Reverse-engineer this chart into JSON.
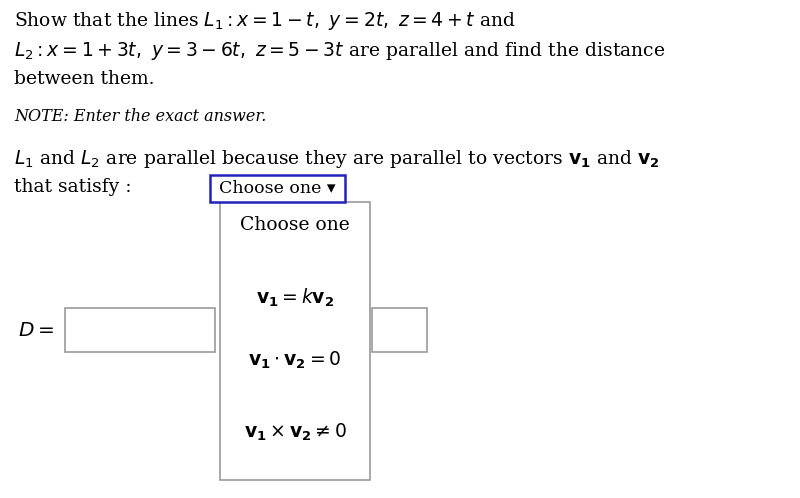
{
  "bg_color": "#ffffff",
  "fig_width": 8.0,
  "fig_height": 4.98,
  "dpi": 100,
  "line1": "Show that the lines $L_1 : x = 1-t,\\ y = 2t,\\ z = 4+t$ and",
  "line2": "$L_2 : x = 1+3t,\\ y = 3-6t,\\ z = 5-3t$ are parallel and find the distance",
  "line3": "between them.",
  "note": "NOTE: Enter the exact answer.",
  "parallel_line1": "$L_1$ and $L_2$ are parallel because they are parallel to vectors $\\mathbf{v_1}$ and $\\mathbf{v_2}$",
  "parallel_line2_left": "that satisfy :",
  "dropdown_label": "Choose one ▾",
  "menu_item0": "Choose one",
  "menu_item1": "$\\mathbf{v_1} = k\\mathbf{v_2}$",
  "menu_item2": "$\\mathbf{v_1}\\cdot\\mathbf{v_2}=0$",
  "menu_item3": "$\\mathbf{v_1}\\times\\mathbf{v_2} \\neq 0$",
  "D_label": "$D =$",
  "text_color": "#000000",
  "dropdown_border_color": "#2222bb",
  "box_border_color": "#999999",
  "font_size_main": 13.5,
  "font_size_note": 11.5,
  "font_size_dropdown": 12.5,
  "font_size_menu": 13.5
}
